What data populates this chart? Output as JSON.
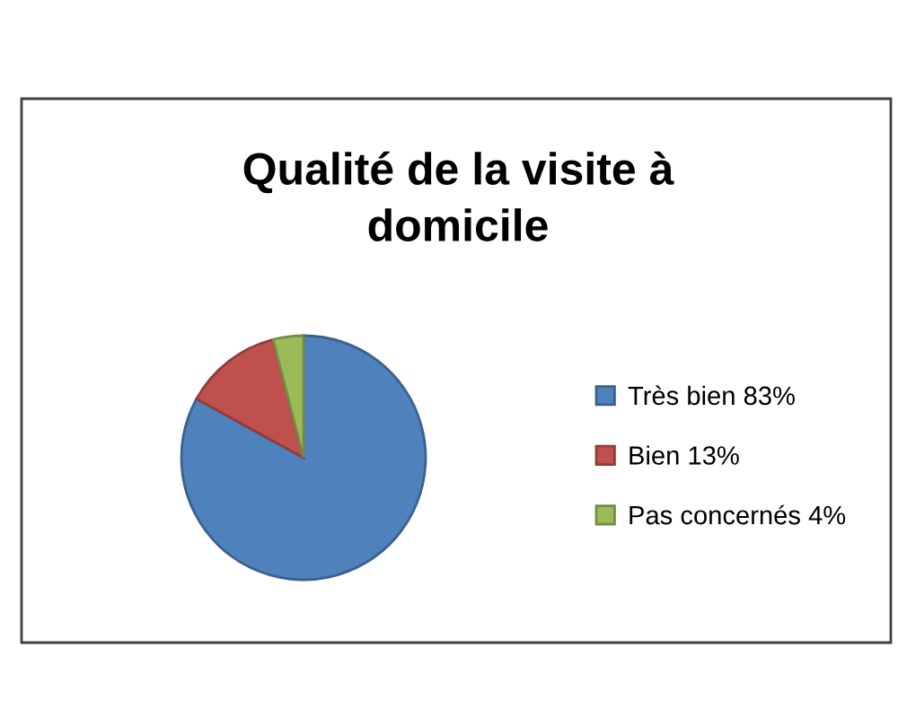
{
  "chart_data": {
    "type": "pie",
    "title": "Qualité de la visite à\ndomicile",
    "categories": [
      "Très bien 83%",
      "Bien 13%",
      "Pas concernés 4%"
    ],
    "values": [
      83,
      13,
      4
    ],
    "colors": [
      "#4f81bd",
      "#c0504d",
      "#9bbb59"
    ],
    "legend": "right"
  }
}
